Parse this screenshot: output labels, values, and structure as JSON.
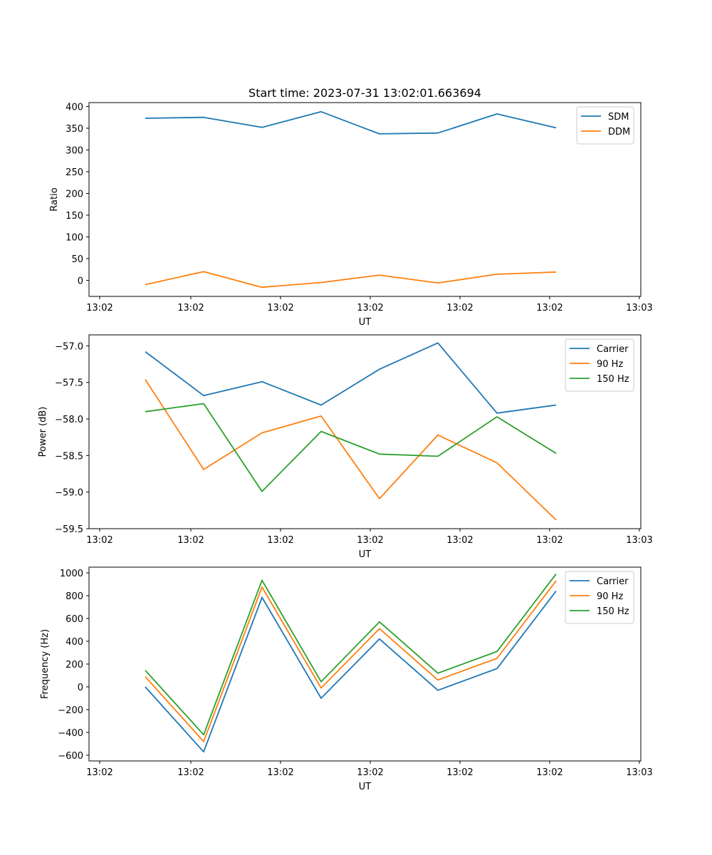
{
  "chart_data": [
    {
      "type": "line",
      "title": "Start time: 2023-07-31 13:02:01.663694",
      "xlabel": "UT",
      "ylabel": "Ratio",
      "x_tick_labels": [
        "13:02",
        "13:02",
        "13:02",
        "13:02",
        "13:02",
        "13:02",
        "13:03"
      ],
      "ylim": [
        -37,
        409
      ],
      "y_ticks": [
        0,
        50,
        100,
        150,
        200,
        250,
        300,
        350,
        400
      ],
      "legend": "top-right",
      "series": [
        {
          "name": "SDM",
          "color": "#1f77b4",
          "values": [
            373,
            375,
            352,
            388,
            337,
            339,
            383,
            351
          ]
        },
        {
          "name": "DDM",
          "color": "#ff7f0e",
          "values": [
            -10,
            20,
            -16,
            -5,
            12,
            -6,
            14,
            19
          ]
        }
      ]
    },
    {
      "type": "line",
      "title": "",
      "xlabel": "UT",
      "ylabel": "Power (dB)",
      "x_tick_labels": [
        "13:02",
        "13:02",
        "13:02",
        "13:02",
        "13:02",
        "13:02",
        "13:03"
      ],
      "ylim": [
        -59.5,
        -56.85
      ],
      "y_ticks": [
        -59.5,
        -59.0,
        -58.5,
        -58.0,
        -57.5,
        -57.0
      ],
      "y_tick_labels": [
        "−59.5",
        "−59.0",
        "−58.5",
        "−58.0",
        "−57.5",
        "−57.0"
      ],
      "legend": "top-right",
      "series": [
        {
          "name": "Carrier",
          "color": "#1f77b4",
          "values": [
            -57.08,
            -57.68,
            -57.49,
            -57.81,
            -57.32,
            -56.96,
            -57.92,
            -57.81
          ]
        },
        {
          "name": "90 Hz",
          "color": "#ff7f0e",
          "values": [
            -57.46,
            -58.69,
            -58.19,
            -57.96,
            -59.09,
            -58.22,
            -58.6,
            -59.38
          ]
        },
        {
          "name": "150 Hz",
          "color": "#2ca02c",
          "values": [
            -57.9,
            -57.79,
            -58.99,
            -58.17,
            -58.48,
            -58.51,
            -57.97,
            -58.47
          ]
        }
      ]
    },
    {
      "type": "line",
      "title": "",
      "xlabel": "UT",
      "ylabel": "Frequency (Hz)",
      "x_tick_labels": [
        "13:02",
        "13:02",
        "13:02",
        "13:02",
        "13:02",
        "13:02",
        "13:03"
      ],
      "ylim": [
        -650,
        1050
      ],
      "y_ticks": [
        -600,
        -400,
        -200,
        0,
        200,
        400,
        600,
        800,
        1000
      ],
      "y_tick_labels": [
        "−600",
        "−400",
        "−200",
        "0",
        "200",
        "400",
        "600",
        "800",
        "1000"
      ],
      "legend": "top-right",
      "series": [
        {
          "name": "Carrier",
          "color": "#1f77b4",
          "values": [
            0,
            -570,
            785,
            -100,
            420,
            -30,
            160,
            840
          ]
        },
        {
          "name": "90 Hz",
          "color": "#ff7f0e",
          "values": [
            90,
            -480,
            875,
            -10,
            510,
            60,
            250,
            930
          ]
        },
        {
          "name": "150 Hz",
          "color": "#2ca02c",
          "values": [
            145,
            -420,
            935,
            45,
            570,
            120,
            310,
            990
          ]
        }
      ]
    }
  ]
}
